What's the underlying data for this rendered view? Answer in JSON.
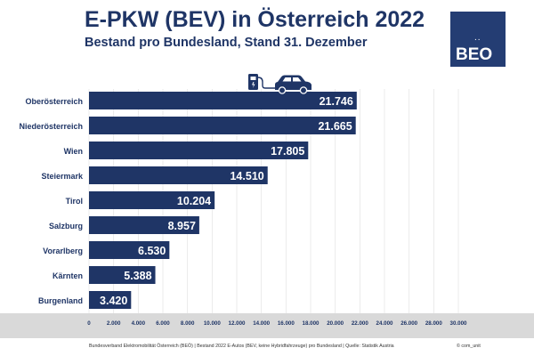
{
  "header": {
    "title": "E-PKW (BEV) in Österreich 2022",
    "subtitle": "Bestand pro Bundesland, Stand 31. Dezember"
  },
  "logo": {
    "text": "BEO",
    "dots": "..",
    "color": "#243d73"
  },
  "icons": {
    "charging": "charging-station-car-icon"
  },
  "colors": {
    "bar": "#1f3566",
    "title": "#1f3566",
    "axis_band": "#d9d9d9"
  },
  "footer": {
    "source": "Bundesverband Elektromobilität Österreich (BEÖ) | Bestand 2022 E-Autos (BEV, keine Hybridfahrzeuge) pro Bundesland | Quelle: Statistik Austria",
    "copyright": "© com_unit"
  },
  "chart_data": {
    "type": "bar",
    "orientation": "horizontal",
    "title": "E-PKW (BEV) in Österreich 2022",
    "subtitle": "Bestand pro Bundesland, Stand 31. Dezember",
    "categories": [
      "Oberösterreich",
      "Niederösterreich",
      "Wien",
      "Steiermark",
      "Tirol",
      "Salzburg",
      "Vorarlberg",
      "Kärnten",
      "Burgenland"
    ],
    "values": [
      21746,
      21665,
      17805,
      14510,
      10204,
      8957,
      6530,
      5388,
      3420
    ],
    "value_labels": [
      "21.746",
      "21.665",
      "17.805",
      "14.510",
      "10.204",
      "8.957",
      "6.530",
      "5.388",
      "3.420"
    ],
    "xlim": [
      0,
      30000
    ],
    "x_ticks": [
      0,
      2000,
      4000,
      6000,
      8000,
      10000,
      12000,
      14000,
      16000,
      18000,
      20000,
      22000,
      24000,
      26000,
      28000,
      30000
    ],
    "x_tick_labels": [
      "0",
      "2.000",
      "4.000",
      "6.000",
      "8.000",
      "10.000",
      "12.000",
      "14.000",
      "16.000",
      "18.000",
      "20.000",
      "22.000",
      "24.000",
      "26.000",
      "28.000",
      "30.000"
    ],
    "grid": true,
    "xlabel": "",
    "ylabel": ""
  }
}
